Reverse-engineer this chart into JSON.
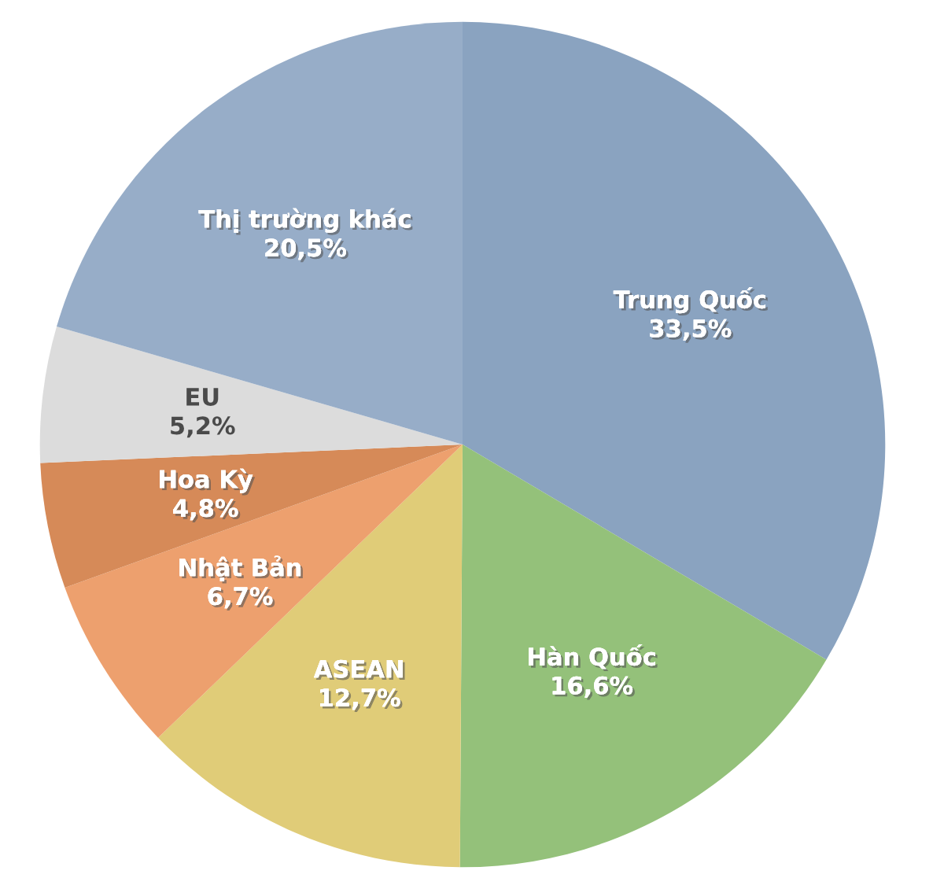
{
  "chart_data": {
    "type": "pie",
    "categories": [
      "Trung Quốc",
      "Hàn Quốc",
      "ASEAN",
      "Nhật Bản",
      "Hoa Kỳ",
      "EU",
      "Thị trường khác"
    ],
    "values": [
      33.5,
      16.6,
      12.7,
      6.7,
      4.8,
      5.2,
      20.5
    ],
    "value_labels": [
      "33,5%",
      "16,6%",
      "12,7%",
      "6,7%",
      "4,8%",
      "5,2%",
      "20,5%"
    ],
    "colors": [
      "#8aa3c0",
      "#94c17a",
      "#e0cc78",
      "#eda06e",
      "#d68a58",
      "#dcdcdc",
      "#97adc8"
    ],
    "legend": false
  }
}
